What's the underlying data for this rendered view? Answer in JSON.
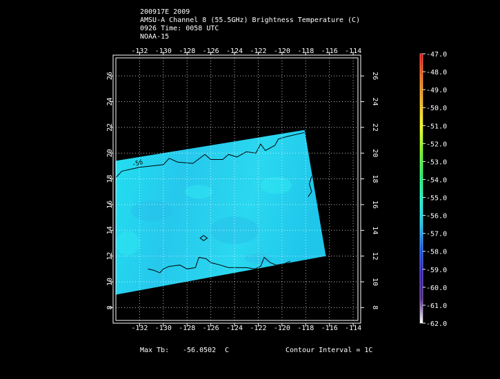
{
  "header": {
    "line1": "200917E 2009",
    "line2": "AMSU-A Channel 8 (55.5GHz) Brightness Temperature (C)",
    "line3": "0926 Time: 0058 UTC",
    "line4": "NOAA-15"
  },
  "footer": {
    "max_tb_label": "Max Tb:",
    "max_tb_value": "-56.0502",
    "max_tb_unit": "C",
    "contour_interval": "Contour Interval = 1C"
  },
  "colors": {
    "background": "#000000",
    "swath": "#1fd8f2",
    "swath_light": "#33ecf2",
    "swath_dark": "#27bde8",
    "contour": "#000000",
    "frame": "#ffffff"
  },
  "chart_data": {
    "type": "heatmap",
    "title": "AMSU-A Channel 8 (55.5GHz) Brightness Temperature (C)",
    "x_ticks": [
      -132,
      -130,
      -128,
      -126,
      -124,
      -122,
      -120,
      -118,
      -116,
      -114
    ],
    "y_ticks": [
      8,
      10,
      12,
      14,
      16,
      18,
      20,
      22,
      24,
      26
    ],
    "xlim": [
      -134,
      -113.6
    ],
    "ylim": [
      7,
      27.4
    ],
    "x_tick_labels": [
      "-132",
      "-130",
      "-128",
      "-126",
      "-124",
      "-122",
      "-120",
      "-118",
      "-116",
      "-114"
    ],
    "y_tick_labels": [
      "8",
      "10",
      "12",
      "14",
      "16",
      "18",
      "20",
      "22",
      "24",
      "26"
    ],
    "grid": true,
    "swath_corners": [
      {
        "lon": -134,
        "lat": 19.4
      },
      {
        "lon": -118.1,
        "lat": 21.8
      },
      {
        "lon": -116.3,
        "lat": 12.0
      },
      {
        "lon": -134,
        "lat": 9.0
      }
    ],
    "contour_label": "-56",
    "contour_level": -56,
    "colorbar": {
      "min": -62.0,
      "max": -47.0,
      "labels": [
        "-47.0",
        "-48.0",
        "-49.0",
        "-50.0",
        "-51.0",
        "-52.0",
        "-53.0",
        "-54.0",
        "-55.0",
        "-56.0",
        "-57.0",
        "-58.0",
        "-59.0",
        "-60.0",
        "-61.0",
        "-62.0"
      ],
      "stops": [
        "#ff0000",
        "#ff6a00",
        "#ffb400",
        "#f0ff00",
        "#6aff00",
        "#00ff60",
        "#00ffd0",
        "#00c8ff",
        "#0050ff",
        "#3010d0",
        "#4a1a90",
        "#ffffff"
      ]
    },
    "max_tb": -56.0502,
    "units": "C"
  }
}
